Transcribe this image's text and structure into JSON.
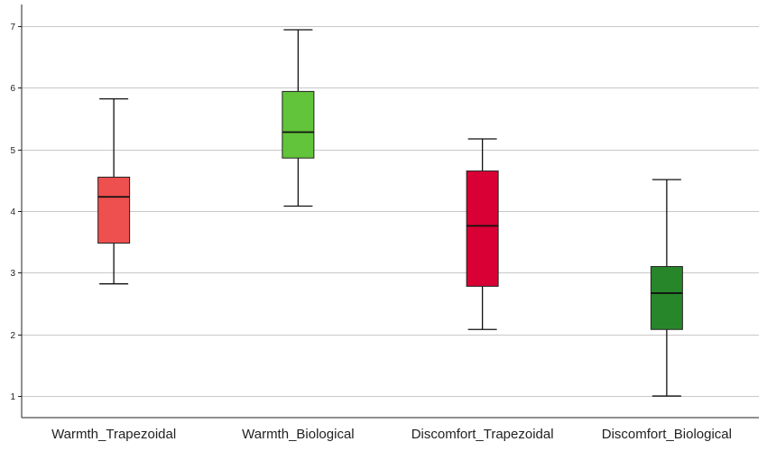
{
  "chart_data": {
    "type": "boxplot",
    "title": "",
    "xlabel": "",
    "ylabel": "",
    "ylim": [
      0.65,
      7.35
    ],
    "yticks": [
      1,
      2,
      3,
      4,
      5,
      6,
      7
    ],
    "grid": true,
    "categories": [
      "Warmth_Trapezoidal",
      "Warmth_Biological",
      "Discomfort_Trapezoidal",
      "Discomfort_Biological"
    ],
    "boxes": [
      {
        "min": 2.82,
        "q1": 3.48,
        "median": 4.23,
        "q3": 4.55,
        "max": 5.82,
        "color": "#EE4F4F"
      },
      {
        "min": 4.08,
        "q1": 4.86,
        "median": 5.28,
        "q3": 5.94,
        "max": 6.94,
        "color": "#62C43A"
      },
      {
        "min": 2.08,
        "q1": 2.78,
        "median": 3.76,
        "q3": 4.65,
        "max": 5.17,
        "color": "#D80034"
      },
      {
        "min": 1.0,
        "q1": 2.08,
        "median": 2.67,
        "q3": 3.1,
        "max": 4.51,
        "color": "#28862A"
      }
    ]
  }
}
